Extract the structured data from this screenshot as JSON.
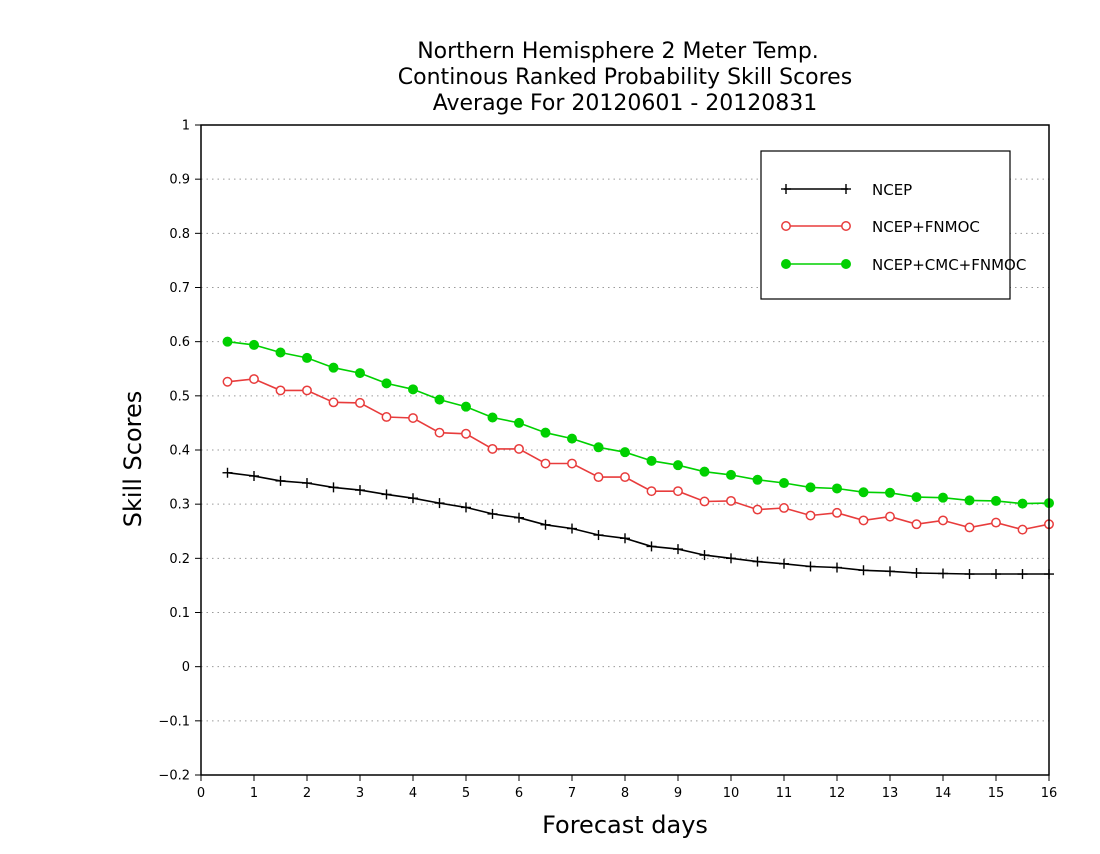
{
  "chart_data": {
    "type": "line",
    "title": [
      "Northern Hemisphere 2 Meter Temp.",
      "Continous Ranked Probability Skill Scores",
      "Average For 20120601 - 20120831"
    ],
    "xlabel": "Forecast days",
    "ylabel": "Skill Scores",
    "xlim": [
      0,
      16
    ],
    "ylim": [
      -0.2,
      1
    ],
    "xticks": [
      "0",
      "1",
      "2",
      "3",
      "4",
      "5",
      "6",
      "7",
      "8",
      "9",
      "10",
      "11",
      "12",
      "13",
      "14",
      "15",
      "16"
    ],
    "yticks": [
      "1",
      "0.9",
      "0.8",
      "0.7",
      "0.6",
      "0.5",
      "0.4",
      "0.3",
      "0.2",
      "0.1",
      "0",
      "-0.1",
      "-0.2"
    ],
    "grid": true,
    "legend_position": "top-right",
    "x": [
      0.5,
      1,
      1.5,
      2,
      2.5,
      3,
      3.5,
      4,
      4.5,
      5,
      5.5,
      6,
      6.5,
      7,
      7.5,
      8,
      8.5,
      9,
      9.5,
      10,
      10.5,
      11,
      11.5,
      12,
      12.5,
      13,
      13.5,
      14,
      14.5,
      15,
      15.5,
      16
    ],
    "series": [
      {
        "name": "NCEP",
        "color": "#000000",
        "marker": "plus",
        "values": [
          0.358,
          0.352,
          0.343,
          0.339,
          0.331,
          0.326,
          0.318,
          0.311,
          0.302,
          0.294,
          0.282,
          0.275,
          0.262,
          0.255,
          0.243,
          0.237,
          0.222,
          0.217,
          0.206,
          0.2,
          0.194,
          0.19,
          0.185,
          0.183,
          0.178,
          0.176,
          0.173,
          0.172,
          0.171,
          0.171,
          0.171,
          0.171
        ]
      },
      {
        "name": "NCEP+FNMOC",
        "color": "#e83c3c",
        "marker": "open-circle",
        "values": [
          0.526,
          0.531,
          0.51,
          0.51,
          0.488,
          0.487,
          0.461,
          0.459,
          0.432,
          0.43,
          0.402,
          0.402,
          0.375,
          0.375,
          0.35,
          0.35,
          0.324,
          0.324,
          0.305,
          0.306,
          0.29,
          0.293,
          0.279,
          0.284,
          0.27,
          0.277,
          0.263,
          0.27,
          0.257,
          0.266,
          0.253,
          0.263
        ]
      },
      {
        "name": "NCEP+CMC+FNMOC",
        "color": "#00d000",
        "marker": "filled-circle",
        "values": [
          0.6,
          0.594,
          0.58,
          0.57,
          0.552,
          0.542,
          0.523,
          0.512,
          0.493,
          0.48,
          0.46,
          0.45,
          0.432,
          0.421,
          0.405,
          0.396,
          0.38,
          0.372,
          0.36,
          0.354,
          0.345,
          0.339,
          0.331,
          0.329,
          0.322,
          0.321,
          0.313,
          0.312,
          0.307,
          0.306,
          0.301,
          0.302
        ]
      }
    ]
  }
}
